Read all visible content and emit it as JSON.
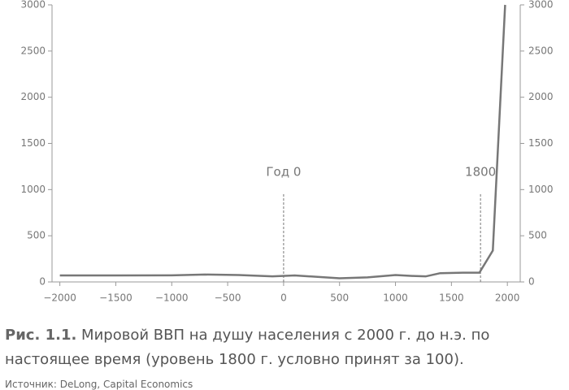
{
  "chart_data": {
    "type": "line",
    "x": [
      -2000,
      -1500,
      -1000,
      -700,
      -400,
      -100,
      100,
      500,
      750,
      1000,
      1150,
      1270,
      1400,
      1600,
      1750,
      1870,
      1980
    ],
    "values": [
      70,
      70,
      72,
      80,
      75,
      60,
      70,
      40,
      50,
      75,
      65,
      60,
      95,
      100,
      100,
      340,
      3000
    ],
    "color": "#777777",
    "xlim": [
      -2070,
      2115
    ],
    "xticks": [
      {
        "value": -2000,
        "label": "−2000"
      },
      {
        "value": -1500,
        "label": "−1500"
      },
      {
        "value": -1000,
        "label": "−1000"
      },
      {
        "value": -500,
        "label": "−500"
      },
      0,
      500,
      1000,
      1500,
      2000
    ],
    "ylim": [
      0,
      3000
    ],
    "yticks": [
      0,
      500,
      1000,
      1500,
      2000,
      2500,
      3000
    ],
    "y2lim": [
      0,
      3000
    ],
    "y2ticks": [
      0,
      500,
      1000,
      1500,
      2000,
      2500,
      3000
    ],
    "annotations": [
      {
        "text": "Год 0",
        "x": 0,
        "y": 950
      },
      {
        "text": "1800",
        "x": 1760,
        "y": 950
      }
    ],
    "caption_label": "Рис. 1.1.",
    "caption": "Мировой ВВП на душу населения с 2000 г. до н.э. по настоящее время (уровень 1800 г. условно принят за 100).",
    "source": "Источник: DeLong, Capital Economics"
  }
}
